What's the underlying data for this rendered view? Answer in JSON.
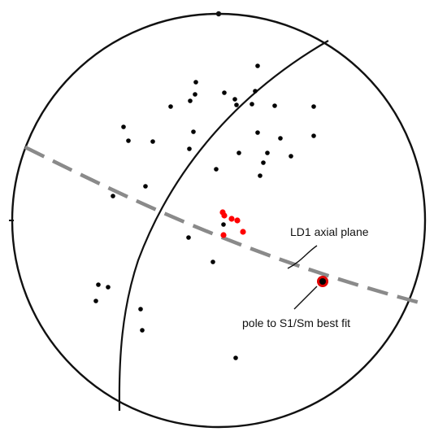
{
  "diagram": {
    "type": "stereonet",
    "colors": {
      "outline": "#111111",
      "pole": "#000000",
      "highlight_pole": "#ff0000",
      "axial_plane": "#8a8a8a",
      "best_fit_outer": "#e00000"
    },
    "labels": {
      "axial_plane": "LD1 axial plane",
      "best_fit": "pole to S1/Sm best fit"
    }
  }
}
